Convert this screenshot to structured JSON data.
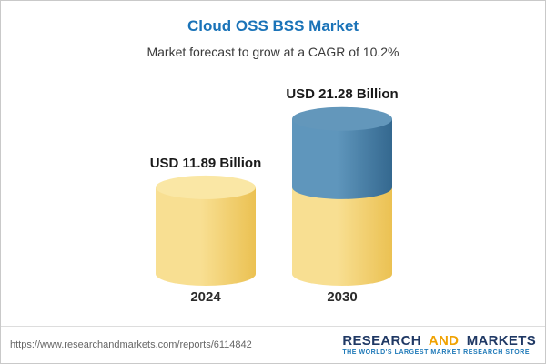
{
  "page": {
    "background": "#FFFFFF",
    "border_color": "#C9C9C9"
  },
  "header": {
    "title": "Cloud OSS BSS Market",
    "title_color": "#1A73B8",
    "subtitle": "Market forecast to grow at a CAGR of 10.2%"
  },
  "chart_data": {
    "type": "bar",
    "style": "3d-cylinder",
    "title": "Cloud OSS BSS Market",
    "subtitle": "Market forecast to grow at a CAGR of 10.2%",
    "unit": "USD Billion",
    "cagr_percent": 10.2,
    "categories": [
      "2024",
      "2030"
    ],
    "values": [
      11.89,
      21.28
    ],
    "value_labels": [
      "USD 11.89 Billion",
      "USD 21.28 Billion"
    ],
    "ylim": [
      0,
      22
    ],
    "grid": false,
    "legend_position": "none",
    "bars": [
      {
        "category": "2024",
        "total": 11.89,
        "segments": [
          {
            "value": 11.89,
            "color_light": "#F8DF92",
            "color_dark": "#EBC152",
            "cap_color": "#FAE7A5"
          }
        ]
      },
      {
        "category": "2030",
        "total": 21.28,
        "segments": [
          {
            "value": 11.89,
            "color_light": "#F8DF92",
            "color_dark": "#EBC152",
            "cap_color": "#FAE7A5"
          },
          {
            "value": 9.39,
            "color_light": "#5F96BC",
            "color_dark": "#34688F",
            "cap_color": "#6397BB"
          }
        ]
      }
    ]
  },
  "footer": {
    "url": "https://www.researchandmarkets.com/reports/6114842",
    "logo": {
      "word1": "RESEARCH",
      "word2": "AND",
      "word3": "MARKETS",
      "word1_color": "#1F3864",
      "word2_color": "#F0A202",
      "word3_color": "#1F3864",
      "tagline": "THE WORLD'S LARGEST MARKET RESEARCH STORE",
      "tagline_color": "#1E79B8"
    }
  }
}
